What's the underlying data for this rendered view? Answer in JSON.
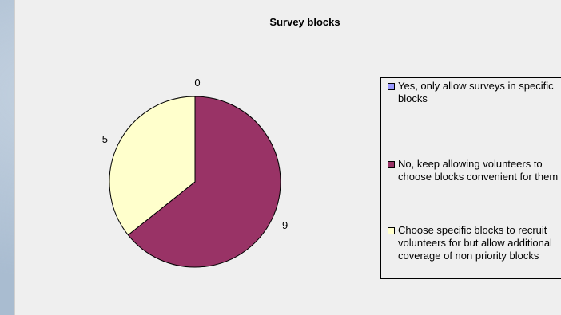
{
  "chart_data": {
    "type": "pie",
    "title": "Survey blocks",
    "slices": [
      {
        "label": "Yes, only allow surveys in specific blocks",
        "value": 0,
        "color": "#9999ff"
      },
      {
        "label": "No, keep allowing volunteers to choose blocks convenient for them",
        "value": 9,
        "color": "#993366"
      },
      {
        "label": "Choose specific blocks to recruit volunteers for but allow additional coverage of non priority blocks",
        "value": 5,
        "color": "#ffffcc"
      }
    ],
    "legend_position": "right"
  }
}
